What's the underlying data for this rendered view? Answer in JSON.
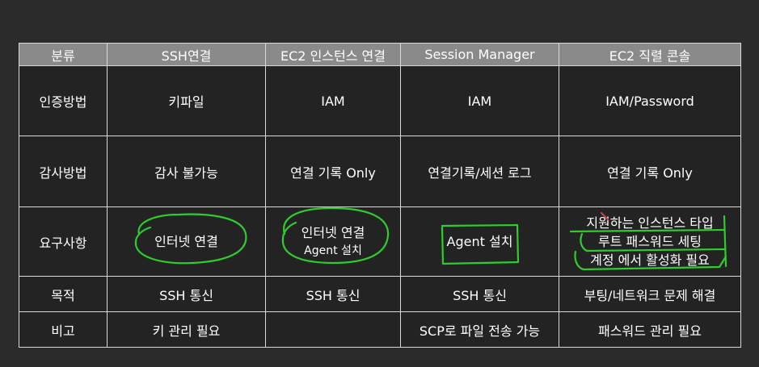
{
  "table": {
    "headers": [
      "분류",
      "SSH연결",
      "EC2 인스턴스 연결",
      "Session Manager",
      "EC2 직렬 콘솔"
    ],
    "rows": [
      {
        "label": "인증방법",
        "cells": [
          "키파일",
          "IAM",
          "IAM",
          "IAM/Password"
        ]
      },
      {
        "label": "감사방법",
        "cells": [
          "감사 불가능",
          "연결 기록 Only",
          "연결기록/세션 로그",
          "연결 기록 Only"
        ]
      },
      {
        "label": "요구사항",
        "cells": [
          [
            "인터넷 연결"
          ],
          [
            "인터넷 연결",
            "Agent 설치"
          ],
          [
            "Agent 설치"
          ],
          [
            "지원하는 인스턴스 타입",
            "루트 패스워드 세팅",
            "계정 에서 활성화 필요"
          ]
        ]
      },
      {
        "label": "목적",
        "cells": [
          "SSH 통신",
          "SSH 통신",
          "SSH 통신",
          "부팅/네트워크 문제 해결"
        ]
      },
      {
        "label": "비고",
        "cells": [
          "키 관리 필요",
          "",
          "SCP로 파일 전송 가능",
          "패스워드 관리 필요"
        ]
      }
    ]
  },
  "annotation_color": "#2ecc2e"
}
